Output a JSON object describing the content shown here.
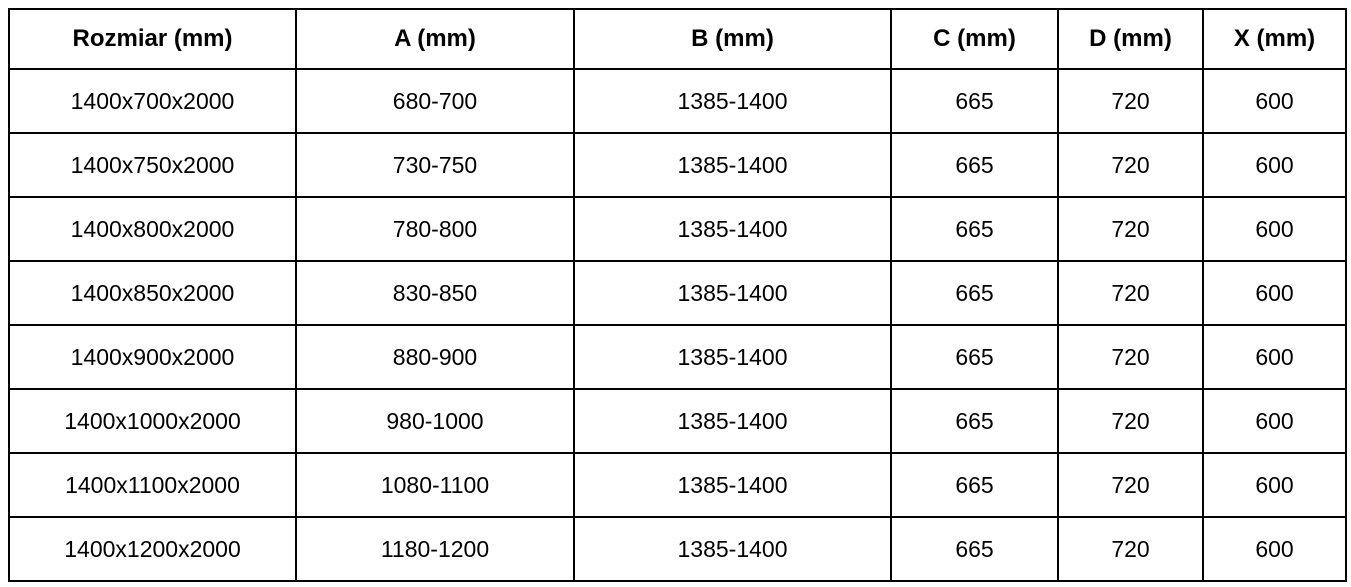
{
  "table": {
    "headers": [
      "Rozmiar (mm)",
      "A (mm)",
      "B (mm)",
      "C (mm)",
      "D (mm)",
      "X (mm)"
    ],
    "rows": [
      [
        "1400x700x2000",
        "680-700",
        "1385-1400",
        "665",
        "720",
        "600"
      ],
      [
        "1400x750x2000",
        "730-750",
        "1385-1400",
        "665",
        "720",
        "600"
      ],
      [
        "1400x800x2000",
        "780-800",
        "1385-1400",
        "665",
        "720",
        "600"
      ],
      [
        "1400x850x2000",
        "830-850",
        "1385-1400",
        "665",
        "720",
        "600"
      ],
      [
        "1400x900x2000",
        "880-900",
        "1385-1400",
        "665",
        "720",
        "600"
      ],
      [
        "1400x1000x2000",
        "980-1000",
        "1385-1400",
        "665",
        "720",
        "600"
      ],
      [
        "1400x1100x2000",
        "1080-1100",
        "1385-1400",
        "665",
        "720",
        "600"
      ],
      [
        "1400x1200x2000",
        "1180-1200",
        "1385-1400",
        "665",
        "720",
        "600"
      ]
    ],
    "colors": {
      "border": "#000000",
      "text": "#000000",
      "background": "#ffffff"
    }
  }
}
